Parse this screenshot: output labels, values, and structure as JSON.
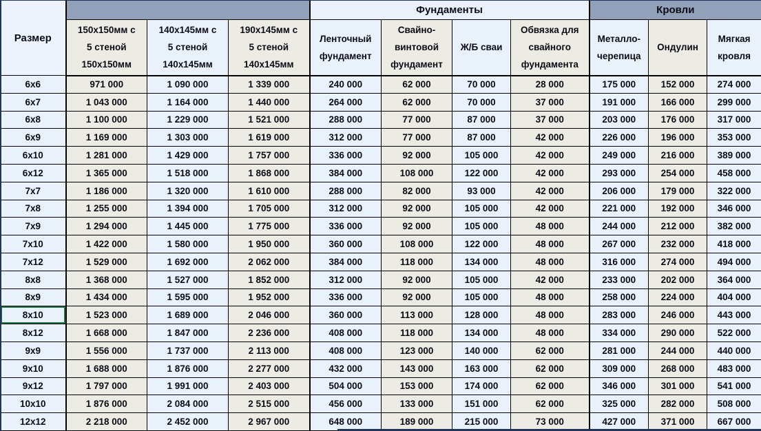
{
  "header": {
    "size_label": "Размер",
    "groups": [
      {
        "label": ""
      },
      {
        "label": "Фундаменты"
      },
      {
        "label": "Кровли"
      }
    ],
    "columns": [
      "150x150мм с\n5 стеной\n150x150мм",
      "140x145мм с\n5 стеной\n140x145мм",
      "190x145мм с\n5 стеной\n140x145мм",
      "Ленточный\nфундамент",
      "Свайно-\nвинтовой\nфундамент",
      "Ж/Б сваи",
      "Обвязка для\nсвайного\nфундамента",
      "Металло-\nчерепица",
      "Ондулин",
      "Мягкая\nкровля"
    ]
  },
  "rows": [
    {
      "size": "6x6",
      "selected": false,
      "values": [
        "971 000",
        "1 090 000",
        "1 339 000",
        "240 000",
        "62 000",
        "70 000",
        "28 000",
        "175 000",
        "152 000",
        "274 000"
      ]
    },
    {
      "size": "6x7",
      "selected": false,
      "values": [
        "1 043 000",
        "1 164 000",
        "1 440 000",
        "264 000",
        "62 000",
        "70 000",
        "37 000",
        "191 000",
        "166 000",
        "299 000"
      ]
    },
    {
      "size": "6x8",
      "selected": false,
      "values": [
        "1 100 000",
        "1 229 000",
        "1 521 000",
        "288 000",
        "77 000",
        "87 000",
        "37 000",
        "203 000",
        "176 000",
        "317 000"
      ]
    },
    {
      "size": "6x9",
      "selected": false,
      "values": [
        "1 169 000",
        "1 303 000",
        "1 619 000",
        "312 000",
        "77 000",
        "87 000",
        "42 000",
        "226 000",
        "196 000",
        "353 000"
      ]
    },
    {
      "size": "6x10",
      "selected": false,
      "values": [
        "1 281 000",
        "1 429 000",
        "1 757 000",
        "336 000",
        "92 000",
        "105 000",
        "42 000",
        "249 000",
        "216 000",
        "389 000"
      ]
    },
    {
      "size": "6x12",
      "selected": false,
      "values": [
        "1 365 000",
        "1 518 000",
        "1 868 000",
        "384 000",
        "108 000",
        "122 000",
        "42 000",
        "293 000",
        "254 000",
        "458 000"
      ]
    },
    {
      "size": "7x7",
      "selected": false,
      "values": [
        "1 186 000",
        "1 320 000",
        "1 610 000",
        "288 000",
        "82 000",
        "93 000",
        "42 000",
        "206 000",
        "179 000",
        "322 000"
      ]
    },
    {
      "size": "7x8",
      "selected": false,
      "values": [
        "1 255 000",
        "1 394 000",
        "1 705 000",
        "312 000",
        "92 000",
        "105 000",
        "42 000",
        "221 000",
        "192 000",
        "346 000"
      ]
    },
    {
      "size": "7x9",
      "selected": false,
      "values": [
        "1 294 000",
        "1 445 000",
        "1 775 000",
        "336 000",
        "92 000",
        "105 000",
        "48 000",
        "244 000",
        "212 000",
        "382 000"
      ]
    },
    {
      "size": "7x10",
      "selected": false,
      "values": [
        "1 422 000",
        "1 580 000",
        "1 950 000",
        "360 000",
        "108 000",
        "122 000",
        "48 000",
        "267 000",
        "232 000",
        "418 000"
      ]
    },
    {
      "size": "7x12",
      "selected": false,
      "values": [
        "1 529 000",
        "1 692 000",
        "2 062 000",
        "384 000",
        "118 000",
        "134 000",
        "48 000",
        "316 000",
        "274 000",
        "494 000"
      ]
    },
    {
      "size": "8x8",
      "selected": false,
      "values": [
        "1 368 000",
        "1 527 000",
        "1 852 000",
        "312 000",
        "92 000",
        "105 000",
        "42 000",
        "233 000",
        "202 000",
        "364 000"
      ]
    },
    {
      "size": "8x9",
      "selected": false,
      "values": [
        "1 434 000",
        "1 595 000",
        "1 952 000",
        "336 000",
        "92 000",
        "105 000",
        "48 000",
        "258 000",
        "224 000",
        "404 000"
      ]
    },
    {
      "size": "8x10",
      "selected": true,
      "values": [
        "1 523 000",
        "1 689 000",
        "2 046 000",
        "360 000",
        "113 000",
        "128 000",
        "48 000",
        "283 000",
        "246 000",
        "443 000"
      ]
    },
    {
      "size": "8x12",
      "selected": false,
      "values": [
        "1 668 000",
        "1 847 000",
        "2 236 000",
        "408 000",
        "118 000",
        "134 000",
        "48 000",
        "334 000",
        "290 000",
        "522 000"
      ]
    },
    {
      "size": "9x9",
      "selected": false,
      "values": [
        "1 556 000",
        "1 737 000",
        "2 113 000",
        "408 000",
        "123 000",
        "140 000",
        "62 000",
        "281 000",
        "244 000",
        "440 000"
      ]
    },
    {
      "size": "9x10",
      "selected": false,
      "values": [
        "1 688 000",
        "1 876 000",
        "2 277 000",
        "432 000",
        "143 000",
        "163 000",
        "62 000",
        "309 000",
        "268 000",
        "483 000"
      ]
    },
    {
      "size": "9x12",
      "selected": false,
      "values": [
        "1 797 000",
        "1 991 000",
        "2 403 000",
        "504 000",
        "153 000",
        "174 000",
        "62 000",
        "346 000",
        "301 000",
        "541 000"
      ]
    },
    {
      "size": "10x10",
      "selected": false,
      "values": [
        "1 876 000",
        "2 084 000",
        "2 515 000",
        "456 000",
        "133 000",
        "151 000",
        "62 000",
        "325 000",
        "282 000",
        "508 000"
      ]
    },
    {
      "size": "12x12",
      "selected": false,
      "values": [
        "2 218 000",
        "2 452 000",
        "2 967 000",
        "648 000",
        "189 000",
        "215 000",
        "73 000",
        "427 000",
        "371 000",
        "667 000"
      ]
    }
  ],
  "colors": {
    "band_header": "#91a1b9",
    "band_light": "#eaf1fa",
    "column_light": "#e9f1fb",
    "column_beige": "#ecebe4",
    "selection_green": "#217346",
    "window_edge_navy": "#223457",
    "grid_line": "#000000"
  }
}
